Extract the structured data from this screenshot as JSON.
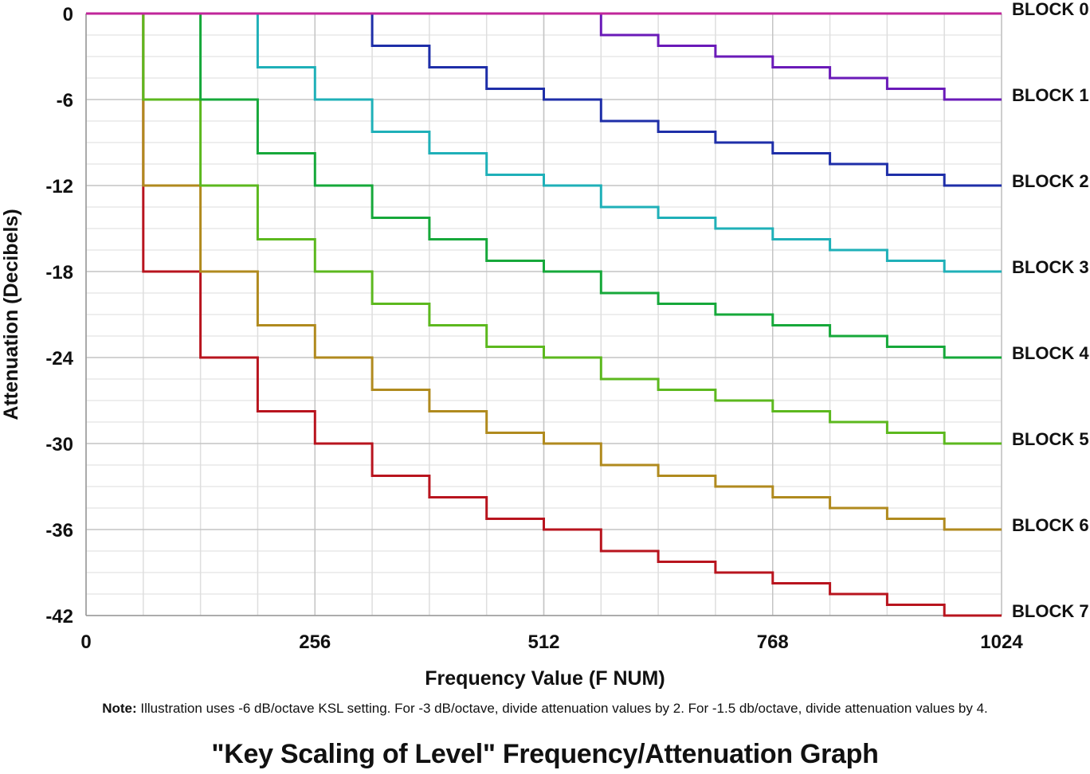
{
  "chart_data": {
    "type": "line",
    "title": "\"Key Scaling of Level\" Frequency/Attenuation Graph",
    "xlabel": "Frequency Value (F NUM)",
    "ylabel": "Attenuation (Decibels)",
    "xlim": [
      0,
      1024
    ],
    "ylim": [
      -42,
      0
    ],
    "x_ticks": [
      "0",
      "256",
      "512",
      "768",
      "1024"
    ],
    "y_ticks": [
      "0",
      "-6",
      "-12",
      "-18",
      "-24",
      "-30",
      "-36",
      "-42"
    ],
    "x_step_boundaries": [
      0,
      64,
      128,
      192,
      256,
      320,
      384,
      448,
      512,
      576,
      640,
      704,
      768,
      832,
      896,
      960,
      1024
    ],
    "grid": true,
    "step": true,
    "series": [
      {
        "name": "BLOCK 0",
        "color": "#c0269a",
        "values": [
          0,
          0,
          0,
          0,
          0,
          0,
          0,
          0,
          0,
          0,
          0,
          0,
          0,
          0,
          0,
          0
        ]
      },
      {
        "name": "BLOCK 1",
        "color": "#6a1ab8",
        "values": [
          0,
          0,
          0,
          0,
          0,
          0,
          0,
          0,
          0,
          -1.5,
          -2.25,
          -3,
          -3.75,
          -4.5,
          -5.25,
          -6
        ]
      },
      {
        "name": "BLOCK 2",
        "color": "#1e2ea8",
        "values": [
          0,
          0,
          0,
          0,
          0,
          -2.25,
          -3.75,
          -5.25,
          -6,
          -7.5,
          -8.25,
          -9,
          -9.75,
          -10.5,
          -11.25,
          -12
        ]
      },
      {
        "name": "BLOCK 3",
        "color": "#1fb0b8",
        "values": [
          0,
          0,
          0,
          -3.75,
          -6,
          -8.25,
          -9.75,
          -11.25,
          -12,
          -13.5,
          -14.25,
          -15,
          -15.75,
          -16.5,
          -17.25,
          -18
        ]
      },
      {
        "name": "BLOCK 4",
        "color": "#16a83a",
        "values": [
          0,
          0,
          -6,
          -9.75,
          -12,
          -14.25,
          -15.75,
          -17.25,
          -18,
          -19.5,
          -20.25,
          -21,
          -21.75,
          -22.5,
          -23.25,
          -24
        ]
      },
      {
        "name": "BLOCK 5",
        "color": "#5cb81e",
        "values": [
          0,
          -6,
          -12,
          -15.75,
          -18,
          -20.25,
          -21.75,
          -23.25,
          -24,
          -25.5,
          -26.25,
          -27,
          -27.75,
          -28.5,
          -29.25,
          -30
        ]
      },
      {
        "name": "BLOCK 6",
        "color": "#b08a1e",
        "values": [
          0,
          -12,
          -18,
          -21.75,
          -24,
          -26.25,
          -27.75,
          -29.25,
          -30,
          -31.5,
          -32.25,
          -33,
          -33.75,
          -34.5,
          -35.25,
          -36
        ]
      },
      {
        "name": "BLOCK 7",
        "color": "#b8141e",
        "values": [
          0,
          -18,
          -24,
          -27.75,
          -30,
          -32.25,
          -33.75,
          -35.25,
          -36,
          -37.5,
          -38.25,
          -39,
          -39.75,
          -40.5,
          -41.25,
          -42
        ]
      }
    ],
    "note_label": "Note:",
    "note_text": " Illustration uses -6 dB/octave KSL setting. For -3 dB/octave, divide attenuation values by 2. For -1.5 db/octave, divide attenuation values by 4."
  }
}
